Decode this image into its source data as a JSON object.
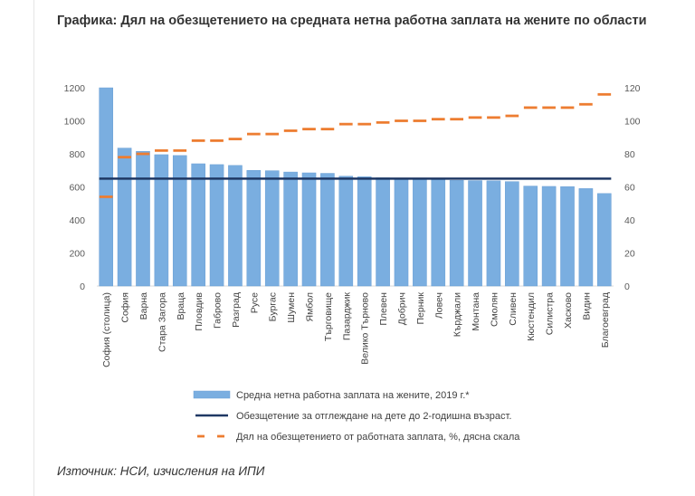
{
  "page": {
    "title": "Графика: Дял на обезщетението на средната нетна работна заплата на жените по области",
    "source": "Източник: НСИ, изчисления на ИПИ"
  },
  "chart_data": {
    "type": "bar",
    "title": "Графика: Дял на обезщетението на средната нетна работна заплата на жените по области",
    "categories": [
      "София (столица)",
      "София",
      "Варна",
      "Стара Загора",
      "Враца",
      "Пловдив",
      "Габрово",
      "Разград",
      "Русе",
      "Бургас",
      "Шумен",
      "Ямбол",
      "Търговище",
      "Пазарджик",
      "Велико Търново",
      "Плевен",
      "Добрич",
      "Перник",
      "Ловеч",
      "Кърджали",
      "Монтана",
      "Смолян",
      "Сливен",
      "Кюстендил",
      "Силистра",
      "Хасково",
      "Видин",
      "Благоевград"
    ],
    "left_axis": {
      "ylim": [
        0,
        1200
      ],
      "ticks": [
        "0",
        "200",
        "400",
        "600",
        "800",
        "1000",
        "1200"
      ]
    },
    "right_axis": {
      "ylim": [
        0,
        120
      ],
      "ticks": [
        "0",
        "20",
        "40",
        "60",
        "80",
        "100",
        "120"
      ]
    },
    "series": [
      {
        "name": "Средна нетна работна заплата на жените, 2019 г.*",
        "kind": "bar",
        "axis": "left",
        "color": "#7aaee0",
        "values": [
          1200,
          835,
          815,
          795,
          790,
          740,
          735,
          730,
          700,
          698,
          690,
          685,
          682,
          665,
          662,
          656,
          650,
          648,
          645,
          640,
          638,
          637,
          632,
          605,
          603,
          602,
          590,
          560
        ]
      },
      {
        "name": "Обезщетение за отглеждане на дете до 2-годишна възраст.",
        "kind": "line",
        "axis": "left",
        "color": "#1f3864",
        "values": [
          650,
          650,
          650,
          650,
          650,
          650,
          650,
          650,
          650,
          650,
          650,
          650,
          650,
          650,
          650,
          650,
          650,
          650,
          650,
          650,
          650,
          650,
          650,
          650,
          650,
          650,
          650,
          650
        ]
      },
      {
        "name": "Дял на обезщетението от работната заплата, %, дясна скала",
        "kind": "dash",
        "axis": "right",
        "color": "#ed7d31",
        "values": [
          54,
          78,
          80,
          82,
          82,
          88,
          88,
          89,
          92,
          92,
          94,
          95,
          95,
          98,
          98,
          99,
          100,
          100,
          101,
          101,
          102,
          102,
          103,
          108,
          108,
          108,
          110,
          116
        ]
      }
    ]
  }
}
